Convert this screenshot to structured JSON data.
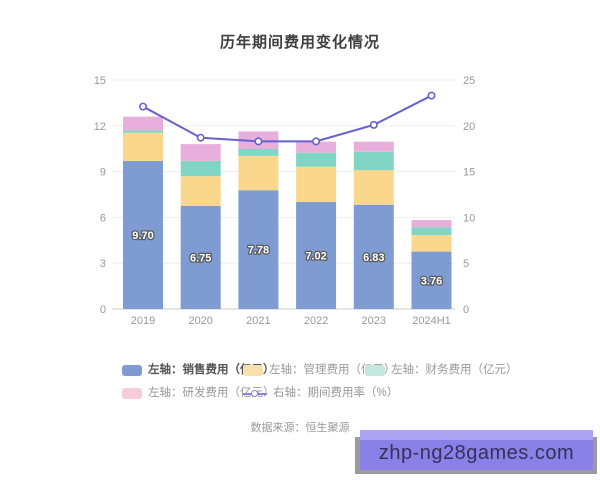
{
  "title": "历年期间费用变化情况",
  "source_note": "数据来源：恒生聚源",
  "watermark": {
    "text": "zhp-ng28games.com",
    "bg": "#8A80E8",
    "bg_top": "#ACA3F2",
    "text_color": "#34315A",
    "shadow": "#9B9B9B"
  },
  "chart_data": {
    "type": "bar",
    "subtype": "stacked-bars-with-line",
    "title": "历年期间费用变化情况",
    "categories": [
      "2019",
      "2020",
      "2021",
      "2022",
      "2023",
      "2024H1"
    ],
    "series": [
      {
        "name": "左轴：销售费用（亿元）",
        "type": "bar",
        "stack": true,
        "axis": "left",
        "color": "#7E9BD2",
        "legend_color": "#7E9BD2",
        "values": [
          9.7,
          6.75,
          7.78,
          7.02,
          6.83,
          3.76
        ],
        "labels": [
          "9.70",
          "6.75",
          "7.78",
          "7.02",
          "6.83",
          "3.76"
        ]
      },
      {
        "name": "左轴：管理费用（亿元）",
        "type": "bar",
        "stack": true,
        "axis": "left",
        "color": "#FBD78E",
        "legend_color": "#FAE0AC",
        "values": [
          1.85,
          1.95,
          2.25,
          2.3,
          2.27,
          1.09
        ]
      },
      {
        "name": "左轴：财务费用（亿元）",
        "type": "bar",
        "stack": true,
        "axis": "left",
        "color": "#80D5C5",
        "legend_color": "#C3E6DF",
        "values": [
          0.15,
          1.0,
          0.45,
          0.92,
          1.2,
          0.5
        ]
      },
      {
        "name": "左轴：研发费用（亿元）",
        "type": "bar",
        "stack": true,
        "axis": "left",
        "color": "#E8AFDC",
        "legend_color": "#F6CDD8",
        "values": [
          0.9,
          1.1,
          1.15,
          0.72,
          0.66,
          0.47
        ]
      },
      {
        "name": "右轴：期间费用率（%）",
        "type": "line",
        "axis": "right",
        "color": "#6661CE",
        "marker": "hollow-circle",
        "values": [
          22.1,
          18.7,
          18.3,
          18.3,
          20.1,
          23.3
        ]
      }
    ],
    "left_axis": {
      "min": 0,
      "max": 15,
      "ticks": [
        "0",
        "3",
        "6",
        "9",
        "12",
        "15"
      ]
    },
    "right_axis": {
      "min": 0,
      "max": 25,
      "ticks": [
        "0",
        "5",
        "10",
        "15",
        "20",
        "25"
      ]
    },
    "grid": true,
    "legend_position": "bottom",
    "bar_label_style": {
      "fill": "#FFFFFF",
      "outline": "#595959"
    },
    "axis_text_color": "#999999",
    "grid_color": "#EDEDED",
    "axis_line_color": "#CCCCCC"
  }
}
